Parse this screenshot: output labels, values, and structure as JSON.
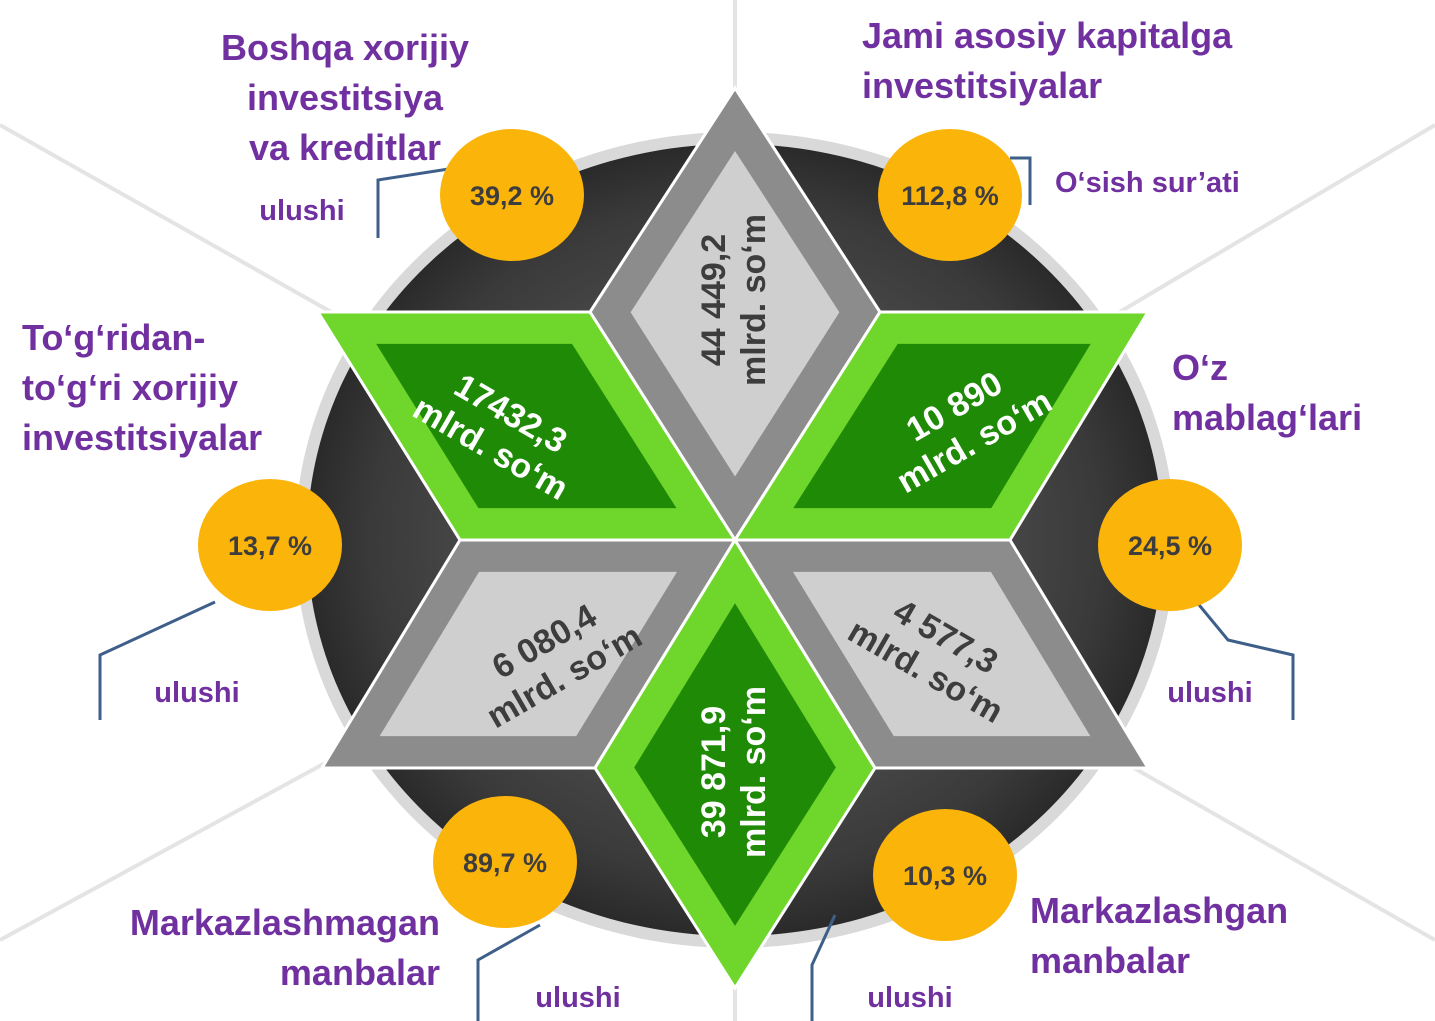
{
  "headings": [
    {
      "lines": [
        "Boshqa xorijiy",
        "investitsiya",
        "va kreditlar"
      ]
    },
    {
      "lines": [
        "Jami asosiy kapitalga",
        "investitsiyalar"
      ]
    },
    {
      "lines": [
        "To‘g‘ridan-",
        "to‘g‘ri xorijiy",
        "investitsiyalar"
      ]
    },
    {
      "lines": [
        "O‘z",
        "mablag‘lari"
      ]
    },
    {
      "lines": [
        "Markazlashmagan",
        "manbalar"
      ]
    },
    {
      "lines": [
        "Markazlashgan",
        "manbalar"
      ]
    }
  ],
  "amounts": [
    {
      "value": "44 449,2",
      "unit": "mlrd. so‘m"
    },
    {
      "value": "17432,3",
      "unit": "mlrd. so‘m"
    },
    {
      "value": "10 890",
      "unit": "mlrd. so‘m"
    },
    {
      "value": "6 080,4",
      "unit": "mlrd. so‘m"
    },
    {
      "value": "39 871,9",
      "unit": "mlrd. so‘m"
    },
    {
      "value": "4 577,3",
      "unit": "mlrd. so‘m"
    }
  ],
  "percentages": [
    "39,2 %",
    "112,8 %",
    "13,7 %",
    "24,5 %",
    "89,7 %",
    "10,3 %"
  ],
  "notes": [
    "ulushi",
    "O‘sish sur’ati",
    "ulushi",
    "ulushi",
    "ulushi",
    "ulushi"
  ]
}
